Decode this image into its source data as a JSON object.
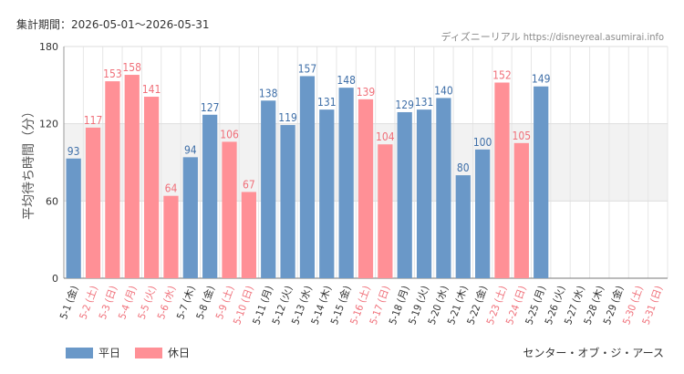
{
  "header": {
    "period": "集計期間：2026-05-01～2026-05-31",
    "source": "ディズニーリアル https://disneyreal.asumirai.info"
  },
  "footer": {
    "facility": "センター・オブ・ジ・アース"
  },
  "colors": {
    "weekday": "#6a98c8",
    "holiday": "#ff9096",
    "weekday_text": "#3f6fa8",
    "holiday_text": "#f0707a",
    "axis_text": "#333333",
    "band": "#f2f2f2"
  },
  "chart_data": {
    "type": "bar",
    "ylabel": "平均待ち時間（分）",
    "xlabel": "",
    "ylim": [
      0,
      180
    ],
    "yticks": [
      0,
      60,
      120,
      180
    ],
    "shaded_band": [
      60,
      120
    ],
    "grid": true,
    "legend": {
      "position": "bottom-left",
      "entries": [
        {
          "name": "平日",
          "color": "#6a98c8"
        },
        {
          "name": "休日",
          "color": "#ff9096"
        }
      ]
    },
    "categories": [
      "5-1 (金)",
      "5-2 (土)",
      "5-3 (日)",
      "5-4 (月)",
      "5-5 (火)",
      "5-6 (水)",
      "5-7 (木)",
      "5-8 (金)",
      "5-9 (土)",
      "5-10 (日)",
      "5-11 (月)",
      "5-12 (火)",
      "5-13 (水)",
      "5-14 (木)",
      "5-15 (金)",
      "5-16 (土)",
      "5-17 (日)",
      "5-18 (月)",
      "5-19 (火)",
      "5-20 (水)",
      "5-21 (木)",
      "5-22 (金)",
      "5-23 (土)",
      "5-24 (日)",
      "5-25 (月)",
      "5-26 (火)",
      "5-27 (水)",
      "5-28 (木)",
      "5-29 (金)",
      "5-30 (土)",
      "5-31 (日)"
    ],
    "holiday": [
      false,
      true,
      true,
      true,
      true,
      true,
      false,
      false,
      true,
      true,
      false,
      false,
      false,
      false,
      false,
      true,
      true,
      false,
      false,
      false,
      false,
      false,
      true,
      true,
      false,
      false,
      false,
      false,
      false,
      true,
      true
    ],
    "values": [
      93,
      117,
      153,
      158,
      141,
      64,
      94,
      127,
      106,
      67,
      138,
      119,
      157,
      131,
      148,
      139,
      104,
      129,
      131,
      140,
      80,
      100,
      152,
      105,
      149,
      null,
      null,
      null,
      null,
      null,
      null
    ]
  }
}
